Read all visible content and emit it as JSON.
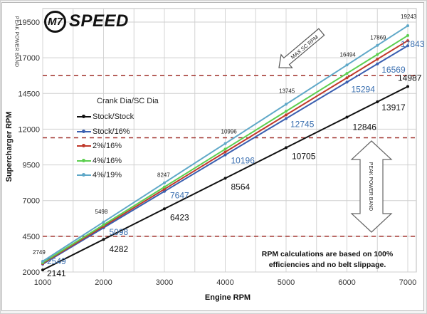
{
  "chart_data": {
    "type": "line",
    "title": "",
    "xlabel": "Engine RPM",
    "ylabel": "Supercharger RPM",
    "x": [
      1000,
      2000,
      3000,
      4000,
      5000,
      6000,
      6500,
      7000
    ],
    "xticks": [
      "1000",
      "2000",
      "3000",
      "4000",
      "5000",
      "6000",
      "7000"
    ],
    "yticks": [
      "2000",
      "4500",
      "7000",
      "9500",
      "12000",
      "14500",
      "17000",
      "19500"
    ],
    "xlim": [
      1000,
      7000
    ],
    "ylim": [
      2000,
      19500
    ],
    "grid": true,
    "legend_title": "Crank Dia/SC Dia",
    "legend_position": "upper-left",
    "series": [
      {
        "name": "Stock/Stock",
        "color": "#111111",
        "values": [
          2141,
          4282,
          6423,
          8564,
          10705,
          12846,
          13917,
          14987
        ],
        "labels": [
          "2141",
          "4282",
          "6423",
          "8564",
          "10705",
          "12846",
          "13917",
          "14987"
        ]
      },
      {
        "name": "Stock/16%",
        "color": "#3a5fb0",
        "values": [
          2549,
          5098,
          7647,
          10196,
          12745,
          15294,
          16569,
          17843
        ],
        "labels": [
          "2549",
          "5098",
          "7647",
          "10196",
          "12745",
          "15294",
          "16569",
          "17843"
        ]
      },
      {
        "name": "2%/16%",
        "color": "#c0392b",
        "values": [
          2600,
          5200,
          7800,
          10400,
          13000,
          15600,
          16900,
          18200
        ]
      },
      {
        "name": "4%/16%",
        "color": "#5ccf4f",
        "values": [
          2651,
          5302,
          7953,
          10604,
          13255,
          15906,
          17232,
          18557
        ]
      },
      {
        "name": "4%/19%",
        "color": "#5fa8c8",
        "values": [
          2749,
          5498,
          8247,
          10996,
          13745,
          16494,
          17869,
          19243
        ],
        "labels": [
          "2749",
          "5498",
          "8247",
          "10996",
          "13745",
          "16494",
          "17869",
          "19243"
        ]
      }
    ],
    "reference_lines": [
      {
        "y": 15750,
        "style": "dashed",
        "color": "#a0302a",
        "label": "MAX SC RPM"
      },
      {
        "y": 11400,
        "style": "dashed",
        "color": "#a0302a",
        "label": "PEAK POWER BAND top"
      },
      {
        "y": 4500,
        "style": "dashed",
        "color": "#a0302a",
        "label": "PEAK POWER BAND bottom"
      }
    ],
    "annotations": [
      "MAX SC RPM",
      "PEAK POWER BAND",
      "RPM calculations are based on 100% efficiencies and no belt slippage."
    ]
  },
  "logo": {
    "badge": "M7",
    "text": "SPEED"
  },
  "side_label": "PEAK POWER BAND",
  "arrow_max": "MAX SC RPM",
  "arrow_peak": "PEAK POWER BAND",
  "note": {
    "line1": "RPM calculations are based on 100%",
    "line2": "efficiencies and no belt slippage."
  }
}
